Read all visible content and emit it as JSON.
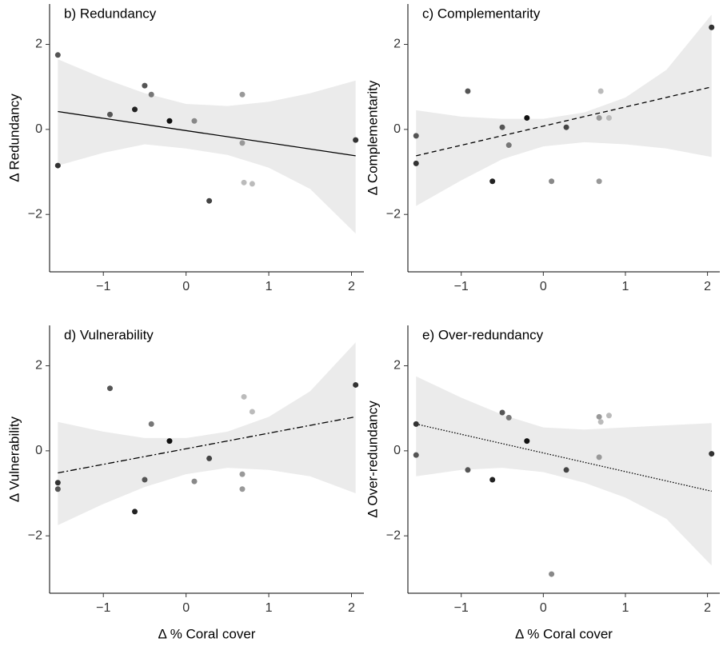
{
  "chart_data": [
    {
      "type": "scatter",
      "title": "b) Redundancy",
      "y_label": "Δ Redundancy",
      "x": [
        -1.55,
        -1.55,
        -0.92,
        -0.62,
        -0.5,
        -0.42,
        -0.2,
        0.1,
        0.28,
        0.68,
        0.68,
        0.7,
        0.8,
        2.05
      ],
      "values": [
        1.75,
        -0.85,
        0.35,
        0.47,
        1.03,
        0.82,
        0.2,
        0.2,
        -1.68,
        0.82,
        -0.32,
        -1.25,
        -1.28,
        -0.25
      ],
      "point_colors": [
        "#555555",
        "#333333",
        "#555555",
        "#222222",
        "#555555",
        "#777777",
        "#111111",
        "#888888",
        "#444444",
        "#999999",
        "#999999",
        "#bbbbbb",
        "#bbbbbb",
        "#333333"
      ],
      "fit": {
        "x": [
          -1.55,
          2.05
        ],
        "values": [
          0.42,
          -0.62
        ],
        "dash": "solid"
      },
      "band": {
        "x": [
          -1.55,
          -1,
          -0.5,
          0,
          0.5,
          1,
          1.5,
          2.05
        ],
        "upper": [
          1.65,
          1.2,
          0.85,
          0.6,
          0.55,
          0.65,
          0.85,
          1.15
        ],
        "lower": [
          -0.85,
          -0.55,
          -0.35,
          -0.45,
          -0.6,
          -0.9,
          -1.4,
          -2.45
        ],
        "color": "#ebebeb"
      },
      "xlim": [
        -1.65,
        2.15
      ],
      "ylim": [
        -3.35,
        2.95
      ],
      "xticks": [
        {
          "value": -1,
          "label": "−1"
        },
        0,
        1,
        2
      ],
      "yticks": [
        {
          "value": -2,
          "label": "−2"
        },
        0,
        2
      ]
    },
    {
      "type": "scatter",
      "title": "c) Complementarity",
      "y_label": "Δ Complementarity",
      "x": [
        -1.55,
        -1.55,
        -0.92,
        -0.62,
        -0.5,
        -0.42,
        -0.2,
        0.1,
        0.28,
        0.68,
        0.68,
        0.7,
        0.8,
        2.05
      ],
      "values": [
        -0.15,
        -0.8,
        0.9,
        -1.22,
        0.05,
        -0.37,
        0.27,
        -1.22,
        0.05,
        0.27,
        -1.22,
        0.9,
        0.27,
        2.4
      ],
      "point_colors": [
        "#555555",
        "#333333",
        "#555555",
        "#222222",
        "#555555",
        "#777777",
        "#111111",
        "#888888",
        "#444444",
        "#999999",
        "#999999",
        "#bbbbbb",
        "#bbbbbb",
        "#333333"
      ],
      "fit": {
        "x": [
          -1.55,
          2.05
        ],
        "values": [
          -0.62,
          1.0
        ],
        "dash": "6,4"
      },
      "band": {
        "x": [
          -1.55,
          -1,
          -0.5,
          0,
          0.5,
          1,
          1.5,
          2.05
        ],
        "upper": [
          0.45,
          0.3,
          0.25,
          0.25,
          0.4,
          0.75,
          1.4,
          2.7
        ],
        "lower": [
          -1.8,
          -1.2,
          -0.7,
          -0.4,
          -0.3,
          -0.35,
          -0.45,
          -0.65
        ],
        "color": "#ebebeb"
      },
      "xlim": [
        -1.65,
        2.15
      ],
      "ylim": [
        -3.35,
        2.95
      ],
      "xticks": [
        {
          "value": -1,
          "label": "−1"
        },
        0,
        1,
        2
      ],
      "yticks": [
        {
          "value": -2,
          "label": "−2"
        },
        0,
        2
      ]
    },
    {
      "type": "scatter",
      "title": "d) Vulnerability",
      "y_label": "Δ Vulnerability",
      "x_label": "Δ % Coral cover",
      "x": [
        -1.55,
        -1.55,
        -0.92,
        -0.62,
        -0.5,
        -0.42,
        -0.2,
        0.1,
        0.28,
        0.68,
        0.68,
        0.7,
        0.8,
        2.05
      ],
      "values": [
        -0.75,
        -0.9,
        1.47,
        -1.43,
        -0.68,
        0.63,
        0.23,
        -0.72,
        -0.18,
        -0.55,
        -0.9,
        1.27,
        0.92,
        1.55
      ],
      "point_colors": [
        "#333333",
        "#555555",
        "#555555",
        "#222222",
        "#555555",
        "#777777",
        "#111111",
        "#888888",
        "#444444",
        "#999999",
        "#999999",
        "#bbbbbb",
        "#bbbbbb",
        "#333333"
      ],
      "fit": {
        "x": [
          -1.55,
          2.05
        ],
        "values": [
          -0.52,
          0.8
        ],
        "dash": "8,3,2,3"
      },
      "band": {
        "x": [
          -1.55,
          -1,
          -0.5,
          0,
          0.5,
          1,
          1.5,
          2.05
        ],
        "upper": [
          0.68,
          0.45,
          0.3,
          0.3,
          0.45,
          0.8,
          1.4,
          2.55
        ],
        "lower": [
          -1.75,
          -1.25,
          -0.85,
          -0.55,
          -0.4,
          -0.45,
          -0.6,
          -1.0
        ],
        "color": "#ebebeb"
      },
      "xlim": [
        -1.65,
        2.15
      ],
      "ylim": [
        -3.35,
        2.95
      ],
      "xticks": [
        {
          "value": -1,
          "label": "−1"
        },
        0,
        1,
        2
      ],
      "yticks": [
        {
          "value": -2,
          "label": "−2"
        },
        0,
        2
      ]
    },
    {
      "type": "scatter",
      "title": "e) Over-redundancy",
      "y_label": "Δ Over-redundancy",
      "x_label": "Δ % Coral cover",
      "x": [
        -1.55,
        -1.55,
        -0.92,
        -0.62,
        -0.5,
        -0.42,
        -0.2,
        0.1,
        0.28,
        0.68,
        0.68,
        0.7,
        0.8,
        2.05
      ],
      "values": [
        0.63,
        -0.1,
        -0.45,
        -0.68,
        0.9,
        0.78,
        0.23,
        -2.9,
        -0.45,
        -0.15,
        0.8,
        0.68,
        0.83,
        -0.07
      ],
      "point_colors": [
        "#333333",
        "#555555",
        "#555555",
        "#222222",
        "#555555",
        "#777777",
        "#111111",
        "#888888",
        "#444444",
        "#999999",
        "#999999",
        "#bbbbbb",
        "#bbbbbb",
        "#333333"
      ],
      "fit": {
        "x": [
          -1.55,
          2.05
        ],
        "values": [
          0.63,
          -0.95
        ],
        "dash": "1.5,2"
      },
      "band": {
        "x": [
          -1.55,
          -1,
          -0.5,
          0,
          0.5,
          1,
          1.5,
          2.05
        ],
        "upper": [
          1.75,
          1.25,
          0.85,
          0.55,
          0.5,
          0.55,
          0.6,
          0.65
        ],
        "lower": [
          -0.6,
          -0.45,
          -0.4,
          -0.5,
          -0.75,
          -1.1,
          -1.6,
          -2.7
        ],
        "color": "#ebebeb"
      },
      "xlim": [
        -1.65,
        2.15
      ],
      "ylim": [
        -3.35,
        2.95
      ],
      "xticks": [
        {
          "value": -1,
          "label": "−1"
        },
        0,
        1,
        2
      ],
      "yticks": [
        {
          "value": -2,
          "label": "−2"
        },
        0,
        2
      ]
    }
  ]
}
